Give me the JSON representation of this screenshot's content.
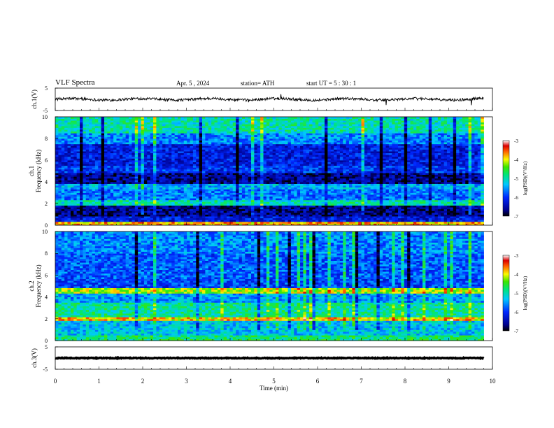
{
  "header": {
    "title": "VLF  Spectra",
    "date": "Apr. 5  , 2024",
    "station": "station= ATH",
    "start": "start  UT  =    5  : 30 : 1"
  },
  "chart_data": [
    {
      "type": "line",
      "panel": "ch1-waveform",
      "ylabel": "ch.1(V)",
      "ylim": [
        -5,
        5
      ],
      "ytick_labels": [
        "5",
        "-5"
      ],
      "xlim": [
        0,
        10
      ],
      "data_extent_min": [
        0,
        9.8
      ],
      "mean_level_V": 0
    },
    {
      "type": "heatmap",
      "panel": "ch1-spectrogram",
      "ylabel": "ch.1\nFrequency  (kHz)",
      "ylim": [
        0,
        10
      ],
      "ytick_labels": [
        "0",
        "2",
        "4",
        "6",
        "8",
        "10"
      ],
      "xlim": [
        0,
        10
      ],
      "colorbar": {
        "label": "log(PSD)(V²/Hz)",
        "range": [
          -7,
          -3
        ],
        "tick_labels": [
          "-3",
          "-4",
          "-5",
          "-6",
          "-7"
        ]
      },
      "bands_kHz": [
        {
          "from": 0,
          "to": 0.3,
          "level": -3.8
        },
        {
          "from": 0.3,
          "to": 0.9,
          "level": -6.2
        },
        {
          "from": 0.9,
          "to": 1.9,
          "level": -6.6
        },
        {
          "from": 1.9,
          "to": 2.3,
          "level": -5.0
        },
        {
          "from": 2.3,
          "to": 3.3,
          "level": -5.7
        },
        {
          "from": 3.3,
          "to": 3.8,
          "level": -5.4
        },
        {
          "from": 3.8,
          "to": 4.8,
          "level": -6.6
        },
        {
          "from": 4.8,
          "to": 5.5,
          "level": -6.0
        },
        {
          "from": 5.5,
          "to": 7.5,
          "level": -6.2
        },
        {
          "from": 7.5,
          "to": 8.5,
          "level": -5.6
        },
        {
          "from": 8.5,
          "to": 10,
          "level": -5.0
        }
      ]
    },
    {
      "type": "heatmap",
      "panel": "ch2-spectrogram",
      "ylabel": "ch.2\nFrequency  (kHz)",
      "ylim": [
        0,
        10
      ],
      "ytick_labels": [
        "0",
        "2",
        "4",
        "6",
        "8",
        "10"
      ],
      "xlim": [
        0,
        10
      ],
      "colorbar": {
        "label": "log(PSD)(V²/Hz)",
        "range": [
          -7,
          -3
        ],
        "tick_labels": [
          "-3",
          "-4",
          "-5",
          "-6",
          "-7"
        ]
      },
      "bands_kHz": [
        {
          "from": 0,
          "to": 0.5,
          "level": -4.8
        },
        {
          "from": 0.5,
          "to": 1.8,
          "level": -5.3
        },
        {
          "from": 1.8,
          "to": 2.2,
          "level": -3.9
        },
        {
          "from": 2.2,
          "to": 3.5,
          "level": -4.9
        },
        {
          "from": 3.5,
          "to": 4.4,
          "level": -5.5
        },
        {
          "from": 4.4,
          "to": 4.8,
          "level": -4.2
        },
        {
          "from": 4.8,
          "to": 5.6,
          "level": -5.9
        },
        {
          "from": 5.6,
          "to": 8.0,
          "level": -5.8
        },
        {
          "from": 8.0,
          "to": 10,
          "level": -5.6
        }
      ]
    },
    {
      "type": "line",
      "panel": "ch3-waveform",
      "ylabel": "ch.3(V)",
      "ylim": [
        -5,
        5
      ],
      "ytick_labels": [
        "5",
        "-5"
      ],
      "xlim": [
        0,
        10
      ],
      "data_extent_min": [
        0,
        9.8
      ],
      "mean_level_V": 0
    }
  ],
  "xaxis": {
    "label": "Time  (min)",
    "ticks": [
      0,
      1,
      2,
      3,
      4,
      5,
      6,
      7,
      8,
      9,
      10
    ],
    "tick_labels": [
      "0",
      "1",
      "2",
      "3",
      "4",
      "5",
      "6",
      "7",
      "8",
      "9",
      "10"
    ]
  }
}
